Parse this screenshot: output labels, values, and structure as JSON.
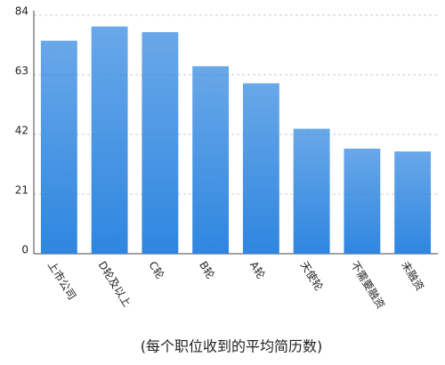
{
  "chart_data": {
    "type": "bar",
    "title": "(每个职位收到的平均简历数)",
    "categories": [
      "上市公司",
      "D轮及以上",
      "C轮",
      "B轮",
      "A轮",
      "天使轮",
      "不需要融资",
      "未融资"
    ],
    "values": [
      75,
      80,
      78,
      66,
      60,
      44,
      37,
      36
    ],
    "color": "#2f86e0",
    "ylim": [
      0,
      84
    ],
    "yticks": [
      0,
      21,
      42,
      63,
      84
    ],
    "grid": true
  }
}
